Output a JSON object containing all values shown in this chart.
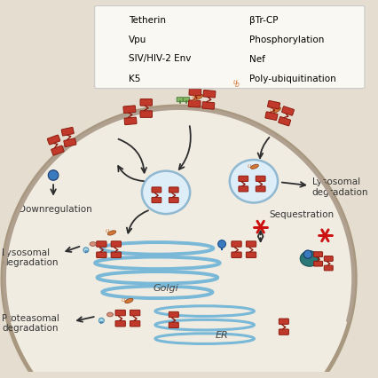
{
  "background_color": "#e5ddd0",
  "cell_fill": "#f0ece2",
  "colors": {
    "tetherin_red": "#c0392b",
    "tetherin_dark": "#8b1a0e",
    "vpu_green": "#82b562",
    "vpu_dark": "#4a7a35",
    "env_blue": "#3a7bbf",
    "env_dark": "#1a4f8a",
    "k5_purple": "#8878b8",
    "k5_light": "#c4b8e8",
    "btrcp_pink": "#d4907a",
    "phospho_cyan": "#a8d8e8",
    "nef_blue": "#3a7bbf",
    "polyub_orange": "#d4783a",
    "ub_orange": "#d4783a",
    "golgi_blue": "#7ab8d8",
    "er_blue": "#7ab8d8",
    "cell_outline": "#a89880",
    "arrow_dark": "#2c2c2c",
    "red_x": "#cc1111",
    "vesicle_fill": "#ddeef8",
    "vesicle_stroke": "#90b8d0",
    "teal_nef": "#2a7878"
  },
  "legend_items_left": [
    "Tetherin",
    "Vpu",
    "SIV/HIV-2 Env",
    "K5"
  ],
  "legend_items_right": [
    "βTr-CP",
    "Phosphorylation",
    "Nef",
    "Poly-ubiquitination"
  ],
  "labels": {
    "downregulation": "Downregulation",
    "lysosomal1": "Lysosomal\ndegradation",
    "lysosomal2": "Lysosomal\ndegradation",
    "proteasomal": "Proteasomal\ndegradation",
    "sequestration": "Sequestration",
    "golgi": "Golgi",
    "er": "ER"
  }
}
